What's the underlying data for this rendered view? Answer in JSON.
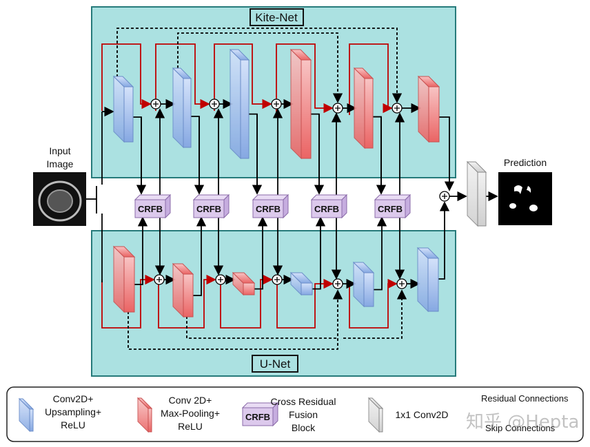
{
  "kite_net": {
    "title": "Kite-Net"
  },
  "u_net": {
    "title": "U-Net"
  },
  "input": {
    "label_line1": "Input",
    "label_line2": "Image"
  },
  "prediction": {
    "label": "Prediction"
  },
  "crfb_label": "CRFB",
  "legend": {
    "conv_up": [
      "Conv2D+",
      "Upsampling+",
      "ReLU"
    ],
    "conv_pool": [
      "Conv 2D+",
      "Max-Pooling+",
      "ReLU"
    ],
    "crfb": [
      "Cross Residual",
      "Fusion",
      "Block"
    ],
    "crfb_box": "CRFB",
    "conv1x1": "1x1 Conv2D",
    "residual": "Residual Connections",
    "skip": "Skip Connections"
  },
  "colors": {
    "panel": "#abe1e1",
    "panel_border": "#267a7a",
    "blue_block": "#8fb0e6",
    "red_block": "#ee7070",
    "crfb": "#dcc9ec",
    "residual": "#c00000"
  },
  "watermark": "知乎 @Hepta"
}
